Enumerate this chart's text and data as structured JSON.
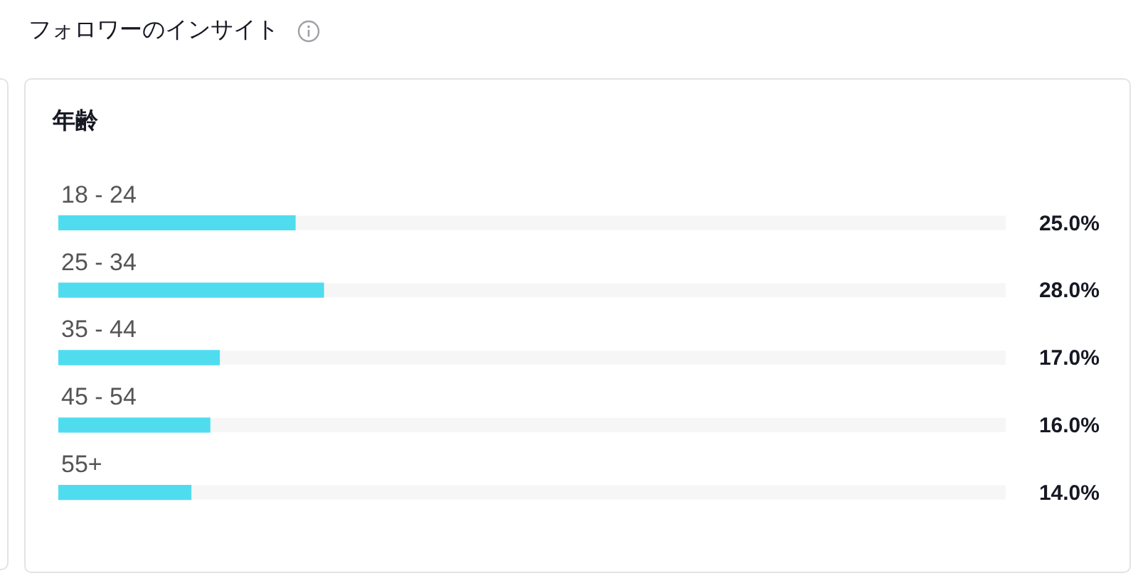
{
  "chart_data": {
    "type": "bar",
    "orientation": "horizontal",
    "title": "フォロワーのインサイト",
    "subtitle": "年齢",
    "categories": [
      "18 - 24",
      "25 - 34",
      "35 - 44",
      "45 - 54",
      "55+"
    ],
    "values": [
      25,
      28,
      17,
      16,
      14
    ],
    "value_labels": [
      "25.0%",
      "28.0%",
      "17.0%",
      "16.0%",
      "14.0%"
    ],
    "color": "#50dcef",
    "xlim": [
      0,
      100
    ],
    "tick_labels": "y"
  }
}
